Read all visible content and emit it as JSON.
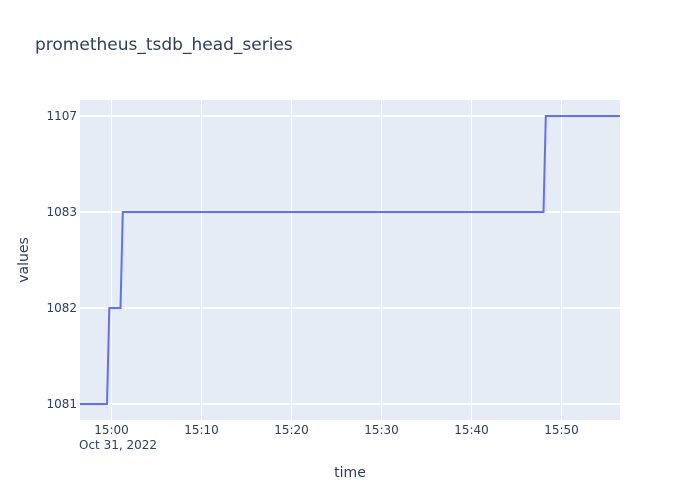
{
  "chart_data": {
    "type": "line",
    "title": "prometheus_tsdb_head_series",
    "xlabel": "time",
    "ylabel": "values",
    "x_range": [
      "2022-10-31 14:56:30",
      "2022-10-31 15:56:30"
    ],
    "x_ticks": [
      "15:00",
      "15:10",
      "15:20",
      "15:30",
      "15:40",
      "15:50"
    ],
    "x_date_label": "Oct 31, 2022",
    "y_tick_labels": [
      "1081",
      "1082",
      "1083",
      "1107"
    ],
    "y_axis_note": "tick labels are categorical (evenly spaced)",
    "grid": true,
    "series": [
      {
        "color": "#636efa",
        "x": [
          "2022-10-31 14:56:30",
          "2022-10-31 14:59:30",
          "2022-10-31 14:59:45",
          "2022-10-31 15:01:00",
          "2022-10-31 15:01:15",
          "2022-10-31 15:48:00",
          "2022-10-31 15:48:15",
          "2022-10-31 15:56:30"
        ],
        "y": [
          "1081",
          "1081",
          "1082",
          "1082",
          "1083",
          "1083",
          "1107",
          "1107"
        ]
      }
    ]
  },
  "colors": {
    "plot_bg": "#e5ecf6",
    "grid": "#ffffff",
    "text": "#2a3f5f",
    "line": "#636efa"
  }
}
